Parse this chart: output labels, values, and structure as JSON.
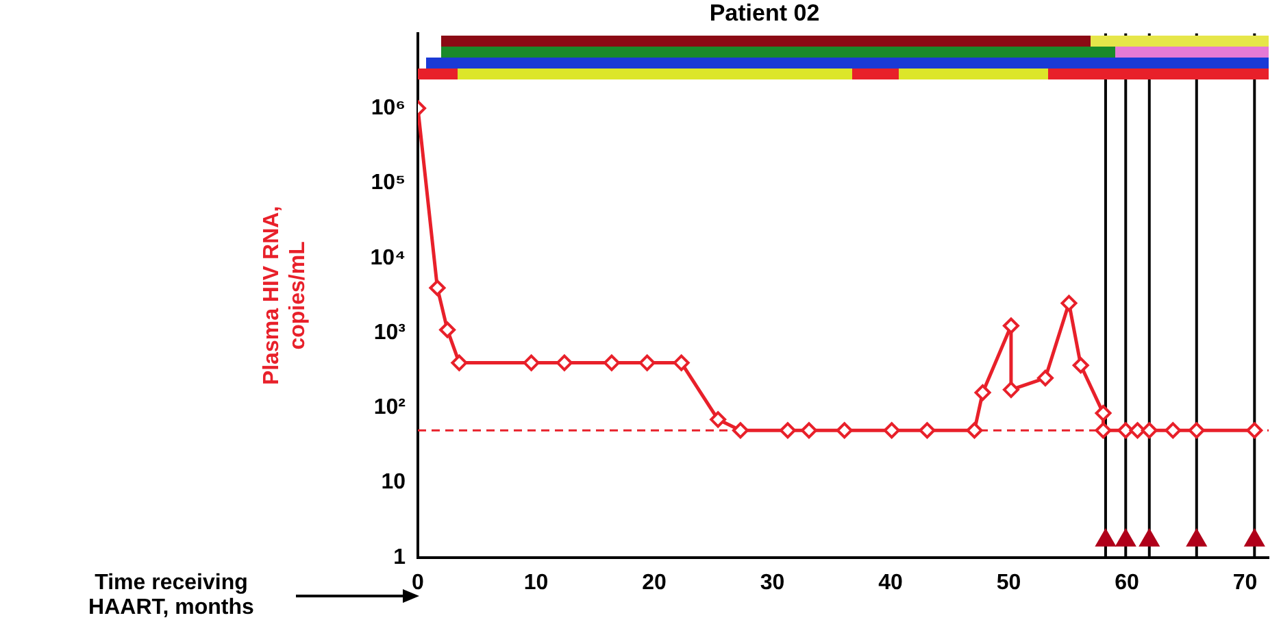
{
  "chart_data": {
    "type": "line",
    "title": "Patient 02",
    "ylabel": "Plasma HIV RNA, copies/mL",
    "annotations": [
      "Time receiving HAART, months"
    ],
    "series": [
      {
        "color": "#e8202a",
        "marker": "diamond",
        "x": [
          0,
          1.65,
          2.5,
          3.5,
          9.6,
          12.4,
          16.4,
          19.4,
          22.3,
          25.4,
          27.3,
          31.3,
          33.1,
          36.1,
          40.1,
          43.1,
          47.1,
          47.8,
          50.2,
          50.2,
          53.1,
          55.1,
          56.1,
          58.0,
          58.0,
          59.9,
          60.9,
          61.9,
          63.9,
          65.9,
          70.8
        ],
        "values": [
          1000000,
          4000,
          1100,
          400,
          400,
          400,
          400,
          400,
          400,
          70,
          50,
          50,
          50,
          50,
          50,
          50,
          50,
          160,
          1250,
          175,
          250,
          2500,
          370,
          85,
          50,
          50,
          50,
          50,
          50,
          50,
          50
        ]
      },
      {
        "type": "scatter",
        "color": "#b0001a",
        "marker": "triangle",
        "x": [
          58.2,
          59.9,
          61.9,
          65.9,
          70.8
        ],
        "values": [
          1.7,
          1.7,
          1.7,
          1.7,
          1.7
        ]
      }
    ],
    "log": "y",
    "xlim": [
      0,
      72
    ],
    "xticks": [
      0,
      10,
      20,
      30,
      40,
      50,
      60,
      70
    ],
    "ylim": [
      1,
      10000000
    ],
    "yticks": [
      1,
      10,
      {
        "value": 100,
        "label": "10²"
      },
      {
        "value": 1000,
        "label": "10³"
      },
      {
        "value": 10000,
        "label": "10⁴"
      },
      {
        "value": 100000,
        "label": "10⁵"
      },
      {
        "value": 1000000,
        "label": "10⁶"
      }
    ],
    "ref_lines": [
      {
        "axis": "y",
        "value": 50,
        "color": "#e8202a",
        "line_style": "dashed"
      },
      {
        "axis": "x",
        "value": 58.2,
        "color": "#000000"
      },
      {
        "axis": "x",
        "value": 59.9,
        "color": "#000000"
      },
      {
        "axis": "x",
        "value": 61.9,
        "color": "#000000"
      },
      {
        "axis": "x",
        "value": 65.9,
        "color": "#000000"
      },
      {
        "axis": "x",
        "value": 70.8,
        "color": "#000000"
      }
    ],
    "grid": false,
    "legend": false
  }
}
